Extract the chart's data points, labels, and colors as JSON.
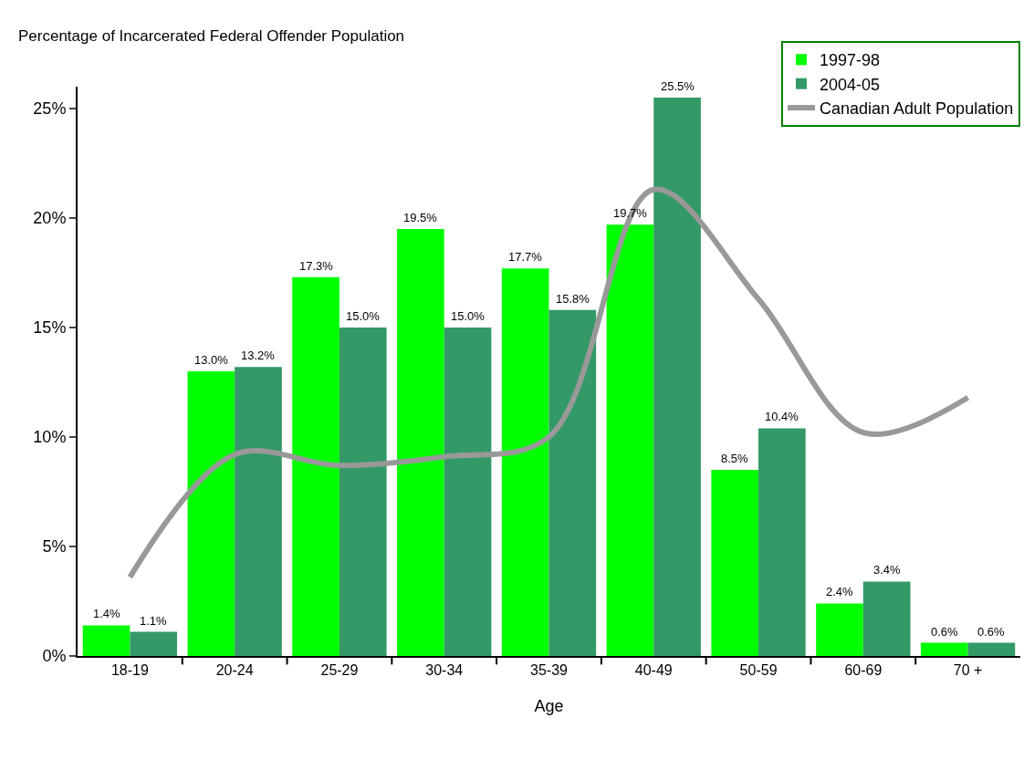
{
  "chart_data": {
    "type": "bar",
    "ylabel": "Percentage of Incarcerated Federal Offender Population",
    "xlabel": "Age",
    "categories": [
      "18-19",
      "20-24",
      "25-29",
      "30-34",
      "35-39",
      "40-49",
      "50-59",
      "60-69",
      "70 +"
    ],
    "series": [
      {
        "name": "1997-98",
        "color": "#00ff00",
        "values": [
          1.4,
          13.0,
          17.3,
          19.5,
          17.7,
          19.7,
          8.5,
          2.4,
          0.6
        ],
        "value_labels": [
          "1.4%",
          "13.0%",
          "17.3%",
          "19.5%",
          "17.7%",
          "19.7%",
          "8.5%",
          "2.4%",
          "0.6%"
        ]
      },
      {
        "name": "2004-05",
        "color": "#339966",
        "values": [
          1.1,
          13.2,
          15.0,
          15.0,
          15.8,
          25.5,
          10.4,
          3.4,
          0.6
        ],
        "value_labels": [
          "1.1%",
          "13.2%",
          "15.0%",
          "15.0%",
          "15.8%",
          "25.5%",
          "10.4%",
          "3.4%",
          "0.6%"
        ]
      },
      {
        "name": "Canadian Adult Population",
        "type": "line",
        "color": "#999999",
        "values": [
          3.6,
          9.2,
          8.7,
          9.1,
          10.0,
          21.3,
          16.3,
          10.2,
          11.8
        ]
      }
    ],
    "ylim": [
      0,
      26
    ],
    "yticks": [
      {
        "value": 0,
        "label": "0%"
      },
      {
        "value": 5,
        "label": "5%"
      },
      {
        "value": 10,
        "label": "10%"
      },
      {
        "value": 15,
        "label": "15%"
      },
      {
        "value": 20,
        "label": "20%"
      },
      {
        "value": 25,
        "label": "25%"
      }
    ],
    "grid": false,
    "legend": "top right",
    "marker": "none",
    "line_style": "solid"
  }
}
